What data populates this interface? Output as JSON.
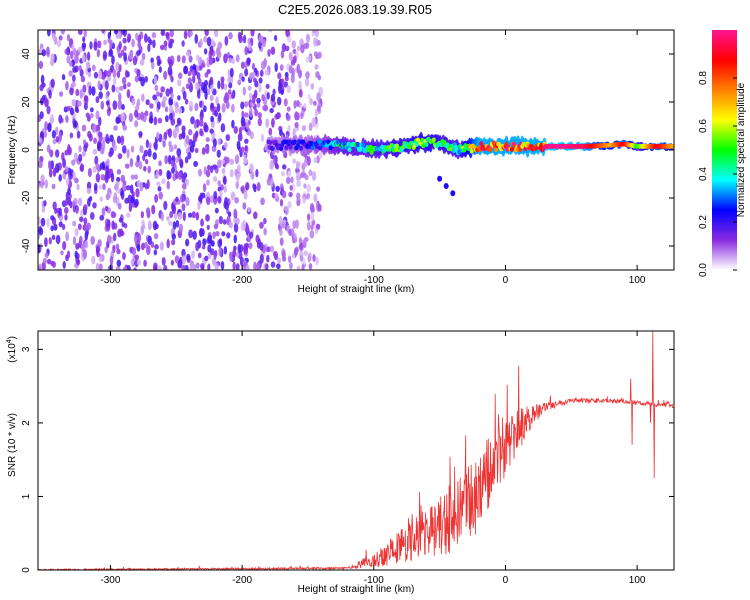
{
  "figure_title": "C2E5.2026.083.19.39.R05",
  "chart_data": [
    {
      "type": "heatmap",
      "name": "spectrogram",
      "xlabel": "Height of straight line (km)",
      "ylabel": "Frequency (Hz)",
      "xlim": [
        -355,
        128
      ],
      "ylim": [
        -50,
        50
      ],
      "xticks": [
        -300,
        -200,
        -100,
        0,
        100
      ],
      "xtick_labels": [
        "-300",
        "-200",
        "-100",
        "0",
        "100"
      ],
      "yticks": [
        -40,
        -20,
        0,
        20,
        40
      ],
      "ytick_labels": [
        "-40",
        "-20",
        "0",
        "20",
        "40"
      ],
      "noise_region_x": [
        -355,
        -140
      ],
      "ridge": [
        {
          "x": -180,
          "f": 2,
          "a": 0.2
        },
        {
          "x": -160,
          "f": 2,
          "a": 0.25
        },
        {
          "x": -140,
          "f": 2,
          "a": 0.3
        },
        {
          "x": -125,
          "f": 2,
          "a": 0.45
        },
        {
          "x": -110,
          "f": 1,
          "a": 0.45
        },
        {
          "x": -95,
          "f": 0,
          "a": 0.5
        },
        {
          "x": -80,
          "f": 1,
          "a": 0.55
        },
        {
          "x": -65,
          "f": 3,
          "a": 0.6
        },
        {
          "x": -50,
          "f": 3,
          "a": 0.55
        },
        {
          "x": -35,
          "f": 0,
          "a": 0.5
        },
        {
          "x": -20,
          "f": 1.5,
          "a": 0.95
        },
        {
          "x": 0,
          "f": 1.5,
          "a": 0.95
        },
        {
          "x": 20,
          "f": 1.5,
          "a": 0.95
        },
        {
          "x": 40,
          "f": 1.5,
          "a": 1.0
        },
        {
          "x": 60,
          "f": 1.5,
          "a": 0.95
        },
        {
          "x": 80,
          "f": 2,
          "a": 0.7
        },
        {
          "x": 90,
          "f": 2.5,
          "a": 0.9
        },
        {
          "x": 100,
          "f": 1.5,
          "a": 0.5
        },
        {
          "x": 115,
          "f": 1.5,
          "a": 0.9
        },
        {
          "x": 128,
          "f": 1.5,
          "a": 0.7
        }
      ],
      "side_branch": [
        {
          "x": -50,
          "f": -12
        },
        {
          "x": -45,
          "f": -15
        },
        {
          "x": -40,
          "f": -18
        }
      ]
    },
    {
      "type": "colorbar",
      "name": "amplitude-colorbar",
      "label": "Normalized spectral amplitude",
      "range": [
        0,
        1
      ],
      "ticks": [
        0.0,
        0.2,
        0.4,
        0.6,
        0.8
      ],
      "tick_labels": [
        "0.0",
        "0.2",
        "0.4",
        "0.6",
        "0.8"
      ],
      "colors": [
        "#ffffff",
        "#8a2be2",
        "#0000ff",
        "#00ffff",
        "#00ff00",
        "#ffff00",
        "#ff8000",
        "#ff0000",
        "#ff1493"
      ]
    },
    {
      "type": "line",
      "name": "snr",
      "xlabel": "Height of straight line (km)",
      "ylabel": "SNR (10 * v/v)",
      "exponent_label": "(x10",
      "exponent_power": "4",
      "exponent_close": ")",
      "xlim": [
        -355,
        128
      ],
      "ylim": [
        0,
        3.25
      ],
      "xticks": [
        -300,
        -200,
        -100,
        0,
        100
      ],
      "xtick_labels": [
        "-300",
        "-200",
        "-100",
        "0",
        "100"
      ],
      "yticks": [
        0,
        1,
        2,
        3
      ],
      "ytick_labels": [
        "0",
        "1",
        "2",
        "3"
      ],
      "color": "#ee3333",
      "envelope": [
        {
          "x": -355,
          "base": 0.0,
          "spread": 0.02
        },
        {
          "x": -120,
          "base": 0.02,
          "spread": 0.03
        },
        {
          "x": -100,
          "base": 0.1,
          "spread": 0.2
        },
        {
          "x": -80,
          "base": 0.25,
          "spread": 0.5
        },
        {
          "x": -60,
          "base": 0.4,
          "spread": 0.7
        },
        {
          "x": -40,
          "base": 0.55,
          "spread": 0.9
        },
        {
          "x": -20,
          "base": 0.9,
          "spread": 1.1
        },
        {
          "x": -5,
          "base": 1.4,
          "spread": 1.0
        },
        {
          "x": 10,
          "base": 1.8,
          "spread": 0.6
        },
        {
          "x": 20,
          "base": 2.05,
          "spread": 0.3
        },
        {
          "x": 30,
          "base": 2.2,
          "spread": 0.12
        },
        {
          "x": 50,
          "base": 2.3,
          "spread": 0.06
        },
        {
          "x": 90,
          "base": 2.28,
          "spread": 0.06
        },
        {
          "x": 128,
          "base": 2.22,
          "spread": 0.06
        }
      ],
      "spikes": [
        {
          "x": 10,
          "y": 2.78
        },
        {
          "x": 95,
          "y": 2.6
        },
        {
          "x": 96,
          "y": 1.7
        },
        {
          "x": 110,
          "y": 2.0
        },
        {
          "x": 112,
          "y": 3.25
        },
        {
          "x": 113,
          "y": 1.25
        }
      ]
    }
  ]
}
